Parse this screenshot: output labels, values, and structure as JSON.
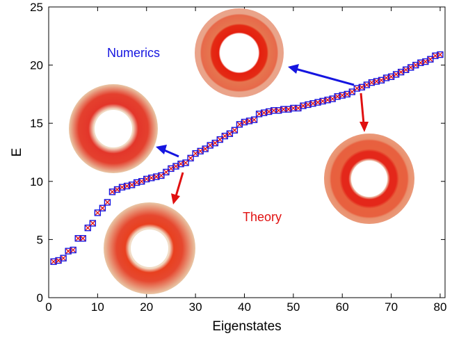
{
  "chart_data": {
    "type": "scatter",
    "title": "",
    "xlabel": "Eigenstates",
    "ylabel": "E",
    "xlim": [
      0,
      81
    ],
    "ylim": [
      0,
      25
    ],
    "xticks": [
      0,
      10,
      20,
      30,
      40,
      50,
      60,
      70,
      80
    ],
    "yticks": [
      0,
      5,
      10,
      15,
      20,
      25
    ],
    "grid": false,
    "series": [
      {
        "name": "Numerics",
        "marker": "square",
        "color": "#1515e0",
        "x": [
          1,
          2,
          3,
          4,
          5,
          6,
          7,
          8,
          9,
          10,
          11,
          12,
          13,
          14,
          15,
          16,
          17,
          18,
          19,
          20,
          21,
          22,
          23,
          24,
          25,
          26,
          27,
          28,
          29,
          30,
          31,
          32,
          33,
          34,
          35,
          36,
          37,
          38,
          39,
          40,
          41,
          42,
          43,
          44,
          45,
          46,
          47,
          48,
          49,
          50,
          51,
          52,
          53,
          54,
          55,
          56,
          57,
          58,
          59,
          60,
          61,
          62,
          63,
          64,
          65,
          66,
          67,
          68,
          69,
          70,
          71,
          72,
          73,
          74,
          75,
          76,
          77,
          78,
          79,
          80
        ],
        "y": [
          3.1,
          3.2,
          3.4,
          4.0,
          4.1,
          5.1,
          5.1,
          6.0,
          6.4,
          7.3,
          7.7,
          8.2,
          9.1,
          9.3,
          9.5,
          9.6,
          9.7,
          9.9,
          10.0,
          10.2,
          10.3,
          10.4,
          10.5,
          10.8,
          11.1,
          11.3,
          11.5,
          11.6,
          12.0,
          12.4,
          12.6,
          12.8,
          13.1,
          13.3,
          13.6,
          13.9,
          14.1,
          14.4,
          14.9,
          15.1,
          15.2,
          15.3,
          15.8,
          15.9,
          16.0,
          16.1,
          16.1,
          16.2,
          16.2,
          16.3,
          16.3,
          16.5,
          16.6,
          16.7,
          16.8,
          16.9,
          17.0,
          17.1,
          17.3,
          17.4,
          17.5,
          17.7,
          18.0,
          18.1,
          18.3,
          18.5,
          18.6,
          18.7,
          18.9,
          19.0,
          19.2,
          19.4,
          19.6,
          19.8,
          20.0,
          20.2,
          20.3,
          20.5,
          20.8,
          20.9
        ]
      },
      {
        "name": "Theory",
        "marker": "x",
        "color": "#e01010",
        "x": [
          1,
          2,
          3,
          4,
          5,
          6,
          7,
          8,
          9,
          10,
          11,
          12,
          13,
          14,
          15,
          16,
          17,
          18,
          19,
          20,
          21,
          22,
          23,
          24,
          25,
          26,
          27,
          28,
          29,
          30,
          31,
          32,
          33,
          34,
          35,
          36,
          37,
          38,
          39,
          40,
          41,
          42,
          43,
          44,
          45,
          46,
          47,
          48,
          49,
          50,
          51,
          52,
          53,
          54,
          55,
          56,
          57,
          58,
          59,
          60,
          61,
          62,
          63,
          64,
          65,
          66,
          67,
          68,
          69,
          70,
          71,
          72,
          73,
          74,
          75,
          76,
          77,
          78,
          79,
          80
        ],
        "y": [
          3.1,
          3.2,
          3.4,
          4.0,
          4.1,
          5.1,
          5.1,
          6.0,
          6.4,
          7.3,
          7.7,
          8.2,
          9.1,
          9.3,
          9.5,
          9.6,
          9.7,
          9.9,
          10.0,
          10.2,
          10.3,
          10.4,
          10.5,
          10.8,
          11.1,
          11.3,
          11.5,
          11.6,
          12.0,
          12.4,
          12.6,
          12.8,
          13.1,
          13.3,
          13.6,
          13.9,
          14.1,
          14.4,
          14.9,
          15.1,
          15.2,
          15.3,
          15.8,
          15.9,
          16.0,
          16.1,
          16.1,
          16.2,
          16.2,
          16.3,
          16.3,
          16.5,
          16.6,
          16.7,
          16.8,
          16.9,
          17.0,
          17.1,
          17.3,
          17.4,
          17.5,
          17.7,
          18.0,
          18.1,
          18.3,
          18.5,
          18.6,
          18.7,
          18.9,
          19.0,
          19.2,
          19.4,
          19.6,
          19.8,
          20.0,
          20.2,
          20.3,
          20.5,
          20.8,
          20.9
        ]
      }
    ],
    "annotations": [
      {
        "text": "Numerics",
        "color": "#1515e0"
      },
      {
        "text": "Theory",
        "color": "#e01010"
      }
    ]
  }
}
